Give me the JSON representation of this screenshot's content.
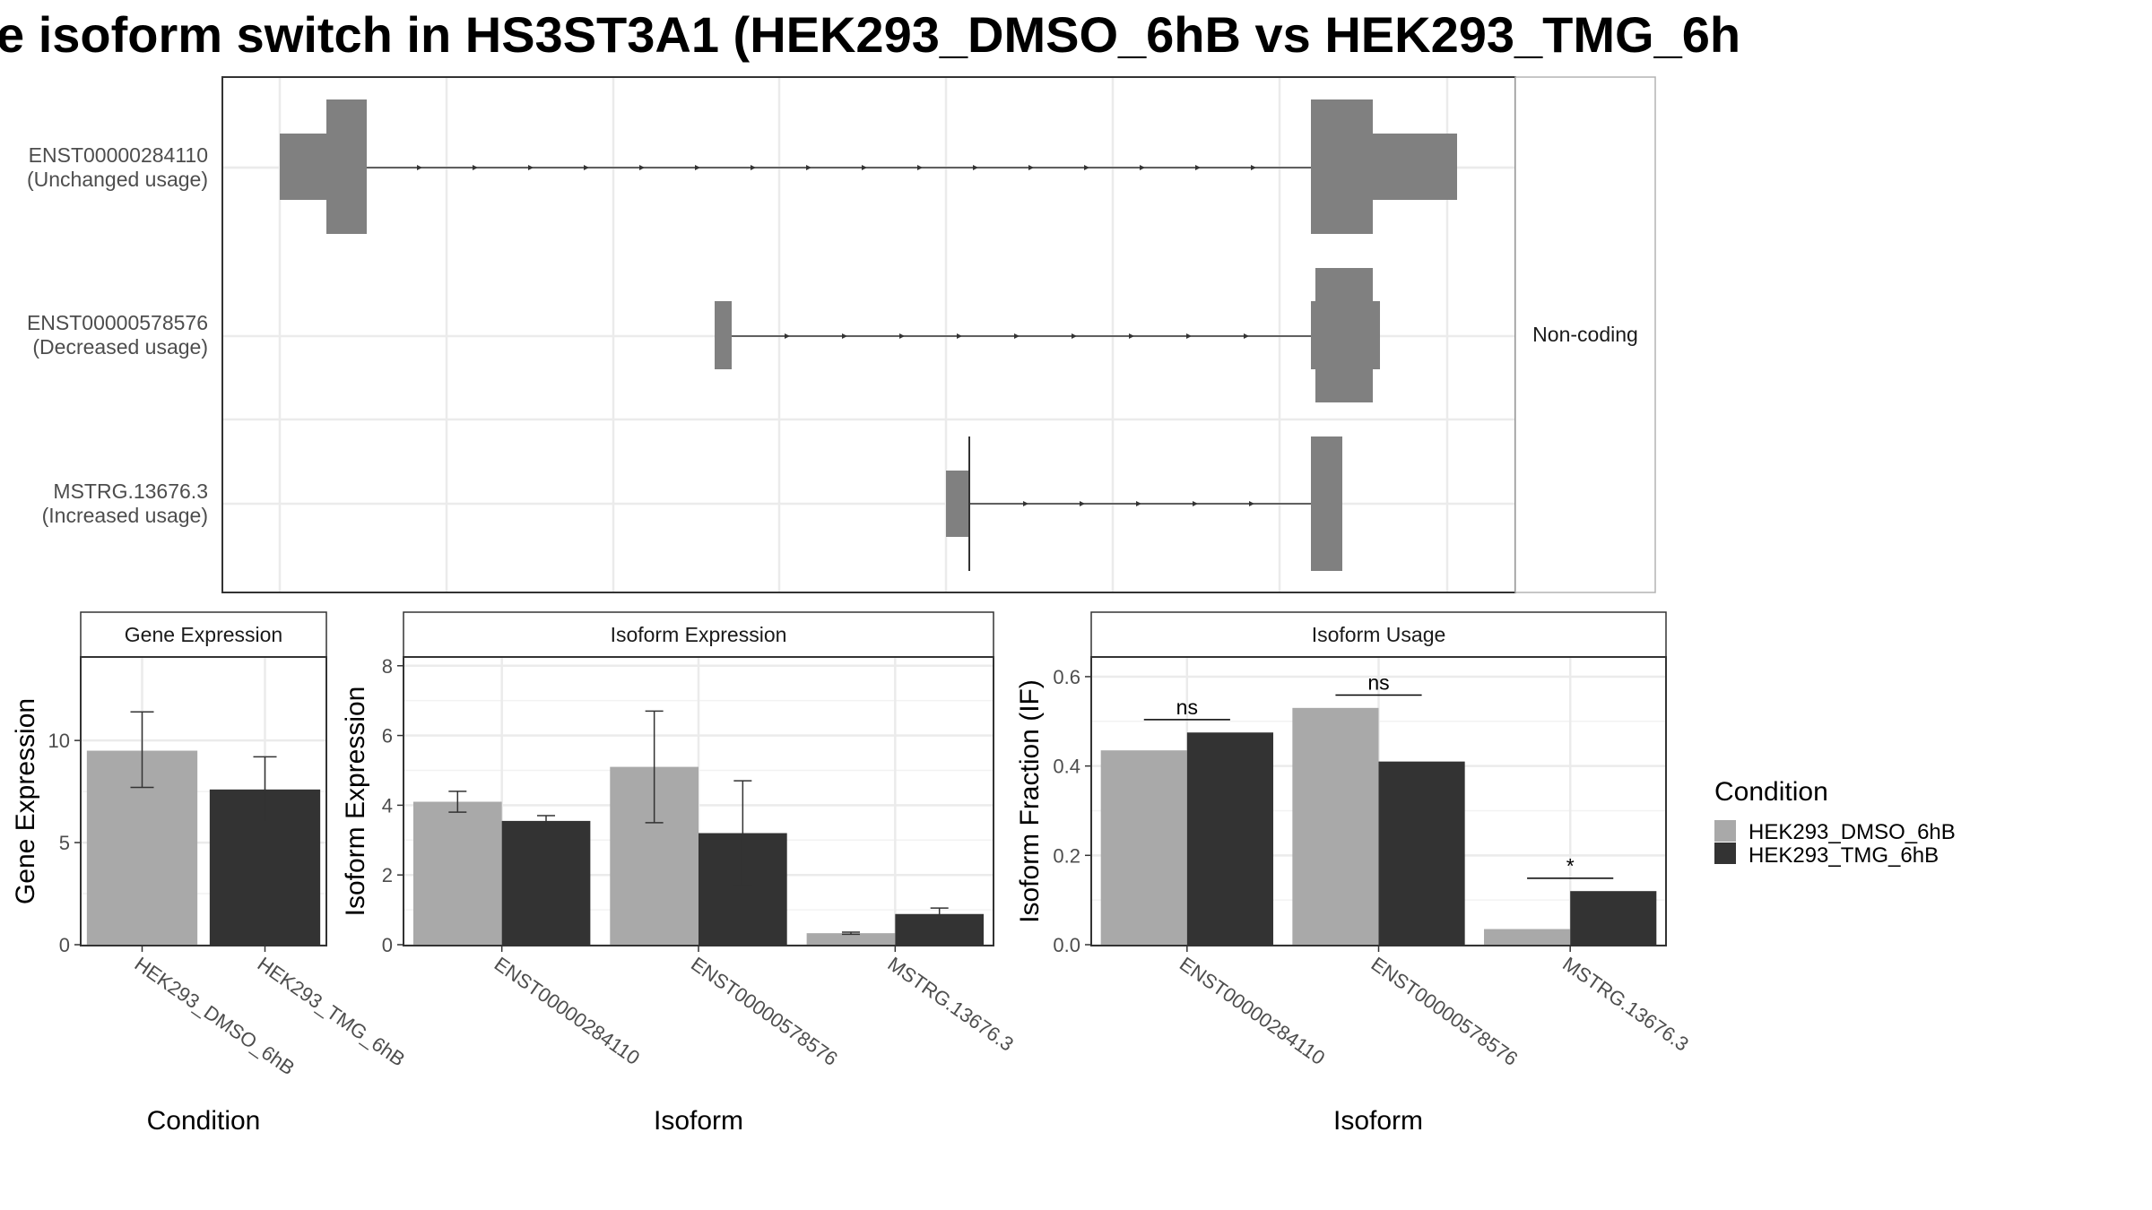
{
  "title": "e isoform switch in HS3ST3A1 (HEK293_DMSO_6hB vs HEK293_TMG_6h",
  "colors": {
    "dmso": "#a9a9a9",
    "tmg": "#333333",
    "exon": "#808080",
    "grid": "#ebebeb",
    "panel_border": "#333333",
    "strip_bg": "#ffffff",
    "line": "#333333"
  },
  "structure": {
    "side_label": "Non-coding",
    "transcripts": [
      {
        "id": "ENST00000284110",
        "usage": "(Unchanged usage)"
      },
      {
        "id": "ENST00000578576",
        "usage": "(Decreased usage)"
      },
      {
        "id": "MSTRG.13676.3",
        "usage": "(Increased usage)"
      }
    ]
  },
  "chart_data": [
    {
      "type": "bar",
      "title": "Gene Expression",
      "xlabel": "Condition",
      "ylabel": "Gene Expression",
      "ylim": [
        0,
        14
      ],
      "yticks": [
        0,
        5,
        10
      ],
      "categories": [
        "HEK293_DMSO_6hB",
        "HEK293_TMG_6hB"
      ],
      "values": [
        9.5,
        7.6
      ],
      "error_low": [
        7.7,
        6.0
      ],
      "error_high": [
        11.4,
        9.2
      ]
    },
    {
      "type": "bar",
      "title": "Isoform Expression",
      "xlabel": "Isoform",
      "ylabel": "Isoform Expression",
      "ylim": [
        0,
        8.2
      ],
      "yticks": [
        0,
        2,
        4,
        6,
        8
      ],
      "categories": [
        "ENST00000284110",
        "ENST00000578576",
        "MSTRG.13676.3"
      ],
      "series": [
        {
          "name": "HEK293_DMSO_6hB",
          "values": [
            4.1,
            5.1,
            0.33
          ],
          "error_low": [
            3.8,
            3.5,
            0.3
          ],
          "error_high": [
            4.4,
            6.7,
            0.36
          ]
        },
        {
          "name": "HEK293_TMG_6hB",
          "values": [
            3.55,
            3.2,
            0.88
          ],
          "error_low": [
            3.4,
            1.7,
            0.72
          ],
          "error_high": [
            3.7,
            4.7,
            1.05
          ]
        }
      ]
    },
    {
      "type": "bar",
      "title": "Isoform Usage",
      "xlabel": "Isoform",
      "ylabel": "Isoform Fraction (IF)",
      "ylim": [
        0,
        0.64
      ],
      "yticks": [
        0.0,
        0.2,
        0.4,
        0.6
      ],
      "ytick_labels": [
        "0.0",
        "0.2",
        "0.4",
        "0.6"
      ],
      "categories": [
        "ENST00000284110",
        "ENST00000578576",
        "MSTRG.13676.3"
      ],
      "series": [
        {
          "name": "HEK293_DMSO_6hB",
          "values": [
            0.435,
            0.53,
            0.035
          ]
        },
        {
          "name": "HEK293_TMG_6hB",
          "values": [
            0.475,
            0.41,
            0.12
          ]
        }
      ],
      "significance": [
        "ns",
        "ns",
        "*"
      ]
    }
  ],
  "legend": {
    "title": "Condition",
    "entries": [
      "HEK293_DMSO_6hB",
      "HEK293_TMG_6hB"
    ]
  }
}
